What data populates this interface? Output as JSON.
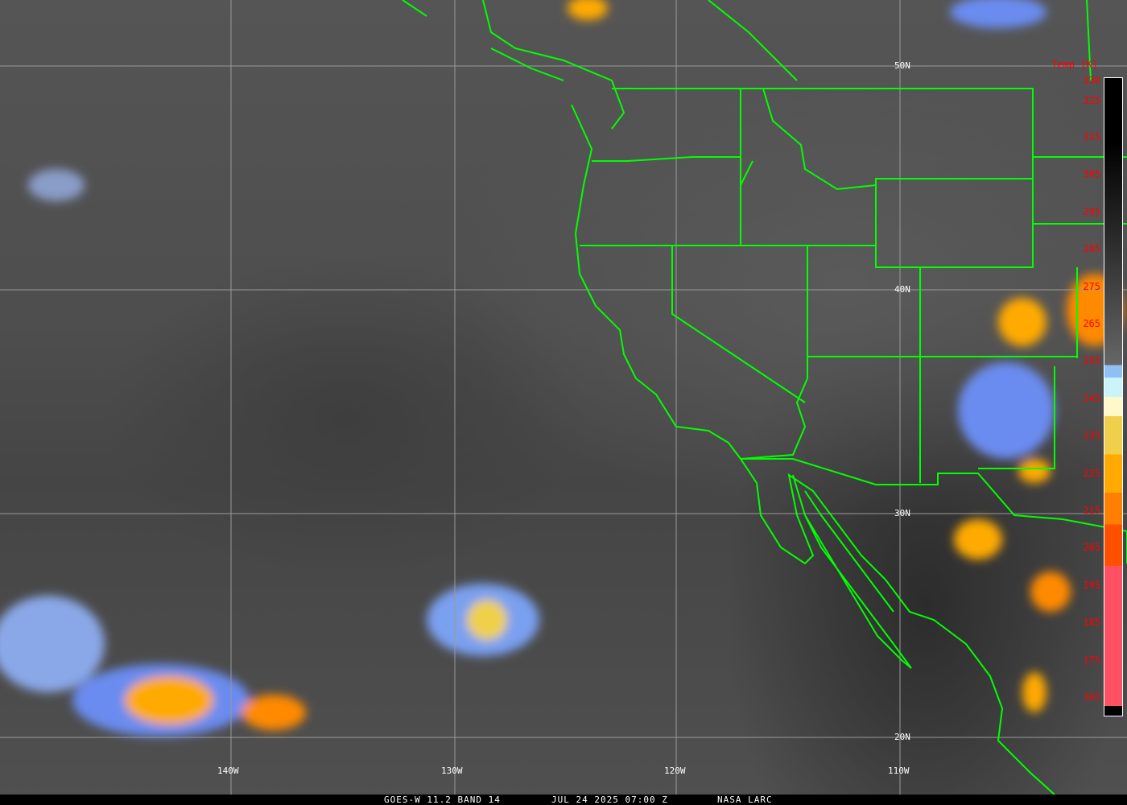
{
  "caption": {
    "satellite": "GOES-W 11.2 BAND 14",
    "datetime": "JUL 24 2025 07:00 Z",
    "credit": "NASA LARC"
  },
  "latitude_labels": [
    "50N",
    "40N",
    "30N",
    "20N"
  ],
  "longitude_labels": [
    "140W",
    "130W",
    "120W",
    "110W"
  ],
  "colorbar": {
    "title": "Temp [K]",
    "ticks": [
      "330",
      "325",
      "315",
      "305",
      "295",
      "285",
      "275",
      "265",
      "255",
      "245",
      "235",
      "225",
      "215",
      "205",
      "195",
      "185",
      "175",
      "165"
    ],
    "colors": {
      "gray_top": "#000000",
      "gray_bottom": "#b4b4b4",
      "blue": "#3a7cf0",
      "light_blue": "#8ec0f4",
      "cyan": "#c8f4fa",
      "pale_yellow": "#fff8c8",
      "yellow": "#f0d04a",
      "amber": "#ffaa00",
      "orange": "#ff7f00",
      "red_orange": "#ff5000",
      "pink": "#ff5064",
      "bottom": "#000000"
    }
  },
  "overlay_colors": {
    "borders": "#00ff00",
    "grid": "#9a9a9a",
    "labels": "#ffffff",
    "colorbar_labels": "#ff0000"
  }
}
